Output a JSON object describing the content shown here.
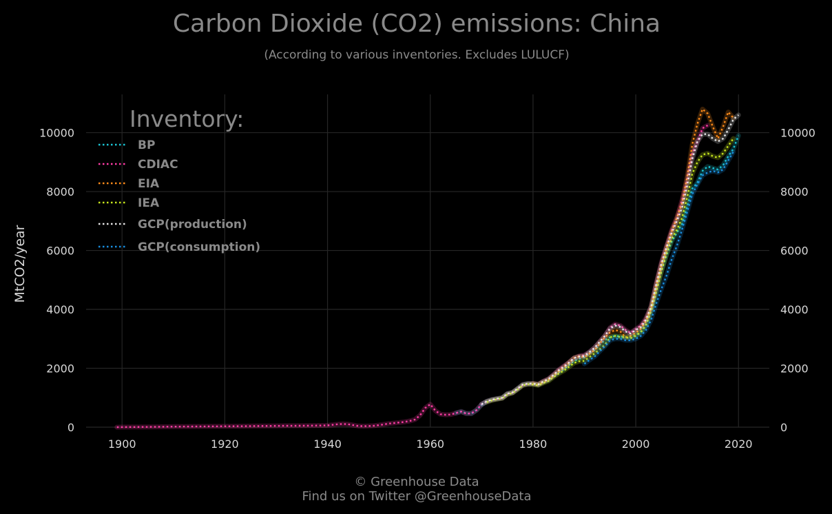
{
  "chart_data": {
    "type": "line",
    "title": "Carbon Dioxide (CO2) emissions: China",
    "subtitle": "(According to various inventories. Excludes LULUCF)",
    "xlabel": "",
    "ylabel": "MtCO2/year",
    "xlim": [
      1893,
      2026
    ],
    "ylim": [
      0,
      11300
    ],
    "xticks": [
      1900,
      1920,
      1940,
      1960,
      1980,
      2000,
      2020
    ],
    "yticks": [
      0,
      2000,
      4000,
      6000,
      8000,
      10000
    ],
    "grid": true,
    "legend": {
      "title": "Inventory:",
      "placement": "top-left"
    },
    "series": [
      {
        "name": "BP",
        "color": "#1cc8d8",
        "x": [
          1965,
          1966,
          1967,
          1968,
          1969,
          1970,
          1971,
          1972,
          1973,
          1974,
          1975,
          1976,
          1977,
          1978,
          1979,
          1980,
          1981,
          1982,
          1983,
          1984,
          1985,
          1986,
          1987,
          1988,
          1989,
          1990,
          1991,
          1992,
          1993,
          1994,
          1995,
          1996,
          1997,
          1998,
          1999,
          2000,
          2001,
          2002,
          2003,
          2004,
          2005,
          2006,
          2007,
          2008,
          2009,
          2010,
          2011,
          2012,
          2013,
          2014,
          2015,
          2016,
          2017,
          2018,
          2019,
          2020
        ],
        "y": [
          480,
          530,
          470,
          460,
          580,
          760,
          870,
          930,
          960,
          990,
          1130,
          1170,
          1300,
          1430,
          1470,
          1470,
          1440,
          1530,
          1600,
          1740,
          1860,
          1970,
          2110,
          2250,
          2320,
          2380,
          2520,
          2620,
          2800,
          2960,
          3050,
          3100,
          3080,
          3060,
          3060,
          3120,
          3250,
          3480,
          3950,
          4650,
          5300,
          5850,
          6300,
          6600,
          6900,
          7500,
          8100,
          8300,
          8700,
          8850,
          8800,
          8750,
          8900,
          9200,
          9450,
          9900
        ]
      },
      {
        "name": "CDIAC",
        "color": "#ff3da6",
        "x": [
          1899,
          1900,
          1902,
          1904,
          1906,
          1908,
          1910,
          1912,
          1914,
          1916,
          1918,
          1920,
          1922,
          1924,
          1926,
          1928,
          1930,
          1932,
          1934,
          1936,
          1938,
          1940,
          1941,
          1942,
          1943,
          1944,
          1945,
          1946,
          1947,
          1948,
          1949,
          1950,
          1951,
          1952,
          1953,
          1954,
          1955,
          1956,
          1957,
          1958,
          1959,
          1960,
          1961,
          1962,
          1963,
          1964,
          1965,
          1966,
          1967,
          1968,
          1969,
          1970,
          1971,
          1972,
          1973,
          1974,
          1975,
          1976,
          1977,
          1978,
          1979,
          1980,
          1981,
          1982,
          1983,
          1984,
          1985,
          1986,
          1987,
          1988,
          1989,
          1990,
          1991,
          1992,
          1993,
          1994,
          1995,
          1996,
          1997,
          1998,
          1999,
          2000,
          2001,
          2002,
          2003,
          2004,
          2005,
          2006,
          2007,
          2008,
          2009,
          2010,
          2011,
          2012,
          2013,
          2014
        ],
        "y": [
          0,
          2,
          5,
          8,
          10,
          14,
          18,
          22,
          24,
          26,
          28,
          30,
          33,
          36,
          40,
          42,
          45,
          48,
          50,
          52,
          55,
          60,
          80,
          100,
          110,
          100,
          70,
          40,
          35,
          40,
          50,
          70,
          95,
          125,
          140,
          160,
          180,
          210,
          260,
          400,
          650,
          780,
          560,
          440,
          420,
          430,
          480,
          530,
          460,
          470,
          580,
          780,
          870,
          930,
          960,
          990,
          1130,
          1170,
          1300,
          1430,
          1470,
          1480,
          1450,
          1560,
          1640,
          1780,
          1950,
          2080,
          2200,
          2350,
          2420,
          2450,
          2550,
          2700,
          2900,
          3100,
          3380,
          3500,
          3450,
          3300,
          3200,
          3330,
          3450,
          3700,
          4100,
          4900,
          5600,
          6150,
          6700,
          7100,
          7700,
          8400,
          9300,
          9700,
          10150,
          10250
        ]
      },
      {
        "name": "EIA",
        "color": "#ff8c1a",
        "x": [
          1980,
          1981,
          1982,
          1983,
          1984,
          1985,
          1986,
          1987,
          1988,
          1989,
          1990,
          1991,
          1992,
          1993,
          1994,
          1995,
          1996,
          1997,
          1998,
          1999,
          2000,
          2001,
          2002,
          2003,
          2004,
          2005,
          2006,
          2007,
          2008,
          2009,
          2010,
          2011,
          2012,
          2013,
          2014,
          2015,
          2016,
          2017,
          2018,
          2019
        ],
        "y": [
          1480,
          1450,
          1530,
          1610,
          1750,
          1900,
          2030,
          2180,
          2350,
          2400,
          2380,
          2500,
          2620,
          2850,
          3050,
          3220,
          3300,
          3250,
          3050,
          3100,
          3200,
          3350,
          3600,
          4050,
          4800,
          5500,
          6100,
          6650,
          7100,
          7600,
          8500,
          9600,
          10300,
          10800,
          10650,
          10200,
          9800,
          10200,
          10700,
          10500
        ]
      },
      {
        "name": "IEA",
        "color": "#c8e61e",
        "x": [
          1971,
          1972,
          1973,
          1974,
          1975,
          1976,
          1977,
          1978,
          1979,
          1980,
          1981,
          1982,
          1983,
          1984,
          1985,
          1986,
          1987,
          1988,
          1989,
          1990,
          1991,
          1992,
          1993,
          1994,
          1995,
          1996,
          1997,
          1998,
          1999,
          2000,
          2001,
          2002,
          2003,
          2004,
          2005,
          2006,
          2007,
          2008,
          2009,
          2010,
          2011,
          2012,
          2013,
          2014,
          2015,
          2016,
          2017,
          2018,
          2019
        ],
        "y": [
          850,
          910,
          950,
          980,
          1110,
          1160,
          1280,
          1420,
          1460,
          1450,
          1420,
          1500,
          1570,
          1700,
          1820,
          1920,
          2050,
          2180,
          2240,
          2250,
          2380,
          2500,
          2650,
          2800,
          3050,
          3100,
          3060,
          3050,
          3020,
          3100,
          3220,
          3450,
          3950,
          4600,
          5300,
          5900,
          6400,
          6700,
          7100,
          7800,
          8600,
          9000,
          9250,
          9300,
          9200,
          9150,
          9300,
          9550,
          9800
        ]
      },
      {
        "name": "GCP(production)",
        "color": "#e6e6e6",
        "x": [
          1970,
          1971,
          1972,
          1973,
          1974,
          1975,
          1976,
          1977,
          1978,
          1979,
          1980,
          1981,
          1982,
          1983,
          1984,
          1985,
          1986,
          1987,
          1988,
          1989,
          1990,
          1991,
          1992,
          1993,
          1994,
          1995,
          1996,
          1997,
          1998,
          1999,
          2000,
          2001,
          2002,
          2003,
          2004,
          2005,
          2006,
          2007,
          2008,
          2009,
          2010,
          2011,
          2012,
          2013,
          2014,
          2015,
          2016,
          2017,
          2018,
          2019,
          2020
        ],
        "y": [
          780,
          880,
          930,
          970,
          1000,
          1140,
          1180,
          1310,
          1450,
          1480,
          1480,
          1450,
          1550,
          1630,
          1770,
          1930,
          2050,
          2190,
          2350,
          2400,
          2420,
          2550,
          2700,
          2900,
          3100,
          3350,
          3450,
          3400,
          3250,
          3180,
          3300,
          3400,
          3650,
          4100,
          4850,
          5550,
          6100,
          6600,
          7000,
          7450,
          8200,
          9100,
          9700,
          9950,
          9950,
          9800,
          9700,
          9800,
          10100,
          10450,
          10600
        ]
      },
      {
        "name": "GCP(consumption)",
        "color": "#1a8fe0",
        "x": [
          1990,
          1991,
          1992,
          1993,
          1994,
          1995,
          1996,
          1997,
          1998,
          1999,
          2000,
          2001,
          2002,
          2003,
          2004,
          2005,
          2006,
          2007,
          2008,
          2009,
          2010,
          2011,
          2012,
          2013,
          2014,
          2015,
          2016,
          2017,
          2018,
          2019
        ],
        "y": [
          2150,
          2280,
          2400,
          2580,
          2750,
          2950,
          3000,
          3000,
          2950,
          2950,
          3000,
          3100,
          3300,
          3650,
          4200,
          4700,
          5150,
          5700,
          6150,
          6700,
          7300,
          7900,
          8250,
          8550,
          8650,
          8700,
          8650,
          8750,
          9050,
          9350
        ]
      }
    ]
  },
  "footer": {
    "credit": "© Greenhouse Data",
    "twitter": "Find us on Twitter @GreenhouseData"
  }
}
